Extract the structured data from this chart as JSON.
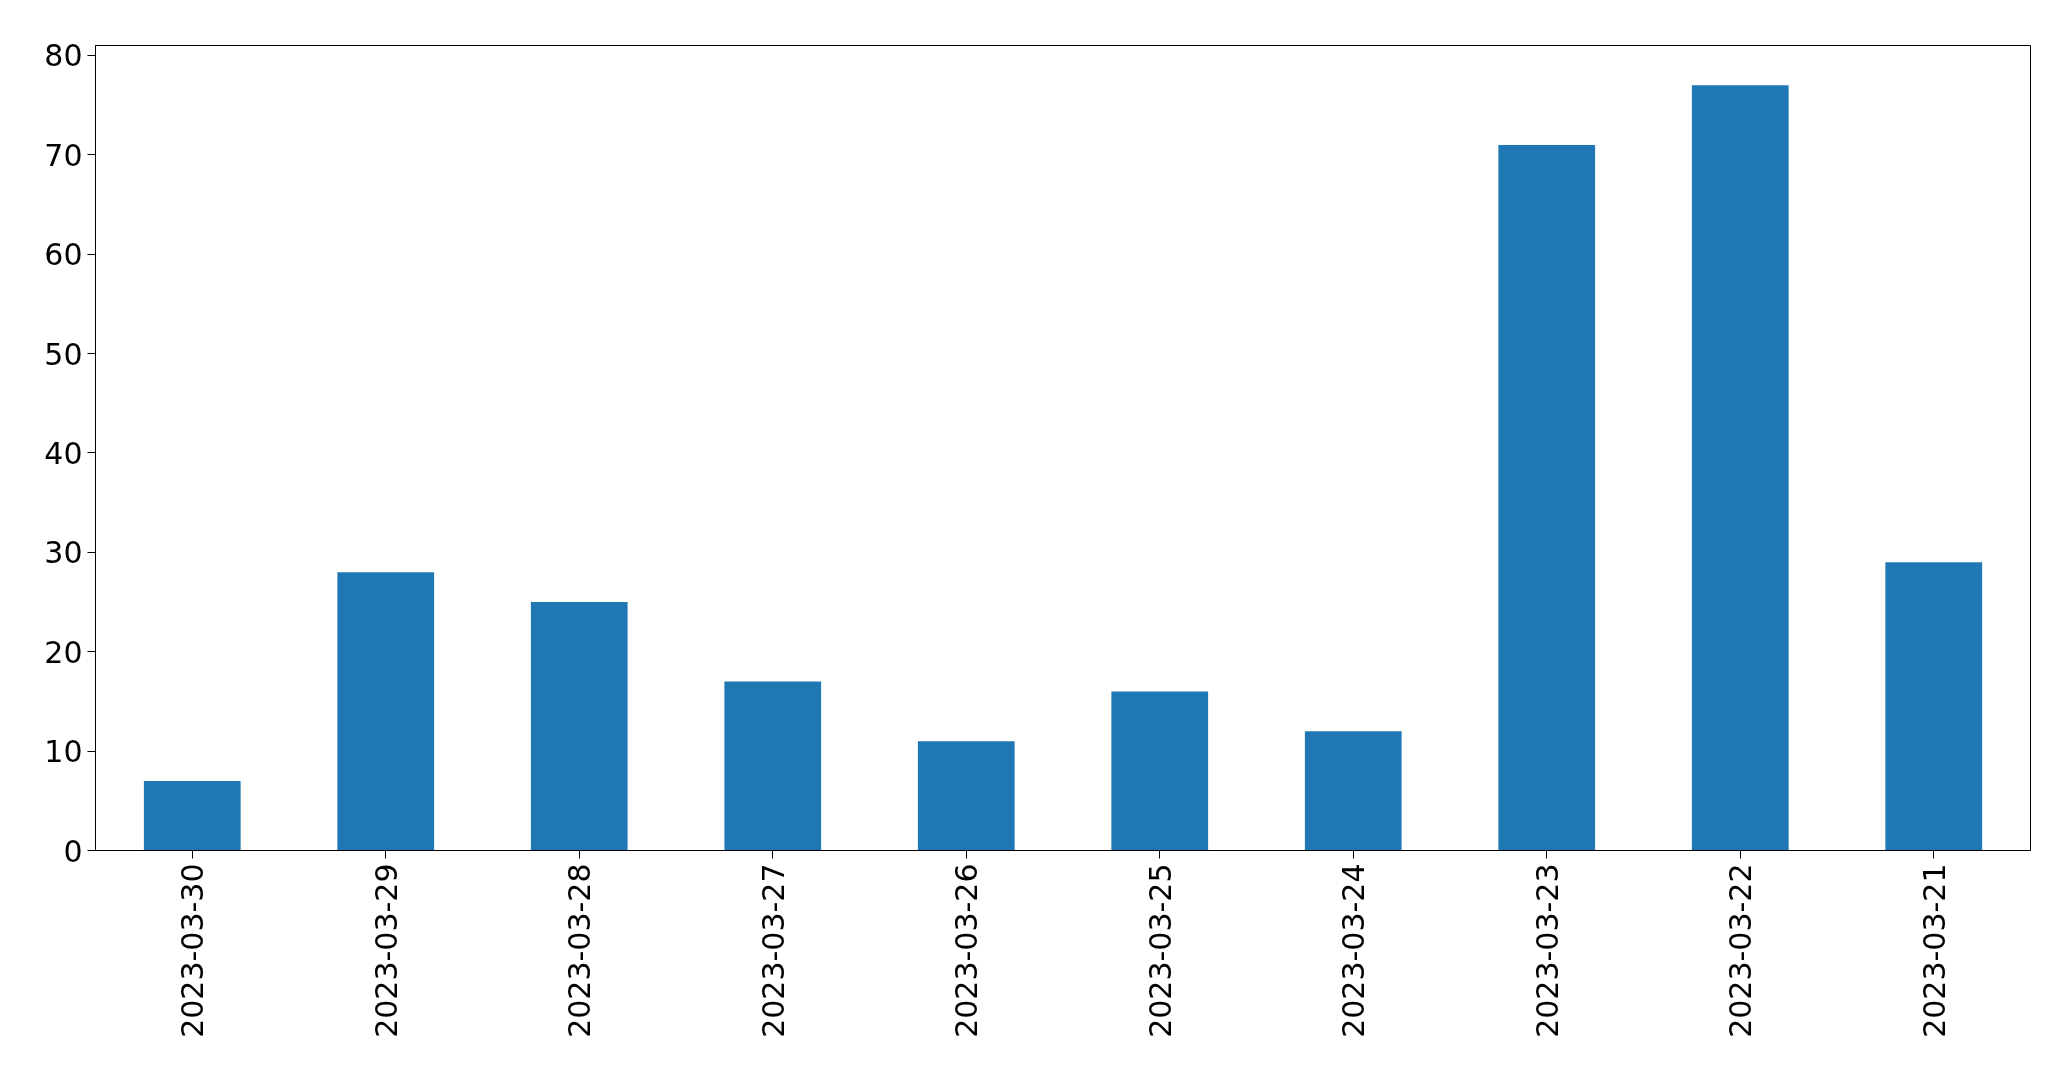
{
  "chart_data": {
    "type": "bar",
    "categories": [
      "2023-03-30",
      "2023-03-29",
      "2023-03-28",
      "2023-03-27",
      "2023-03-26",
      "2023-03-25",
      "2023-03-24",
      "2023-03-23",
      "2023-03-22",
      "2023-03-21"
    ],
    "values": [
      7,
      28,
      25,
      17,
      11,
      16,
      12,
      71,
      77,
      29
    ],
    "color": "#1f77b4",
    "ylim": [
      0,
      81
    ],
    "yticks": [
      0,
      10,
      20,
      30,
      40,
      50,
      60,
      70,
      80
    ],
    "grid": false
  }
}
